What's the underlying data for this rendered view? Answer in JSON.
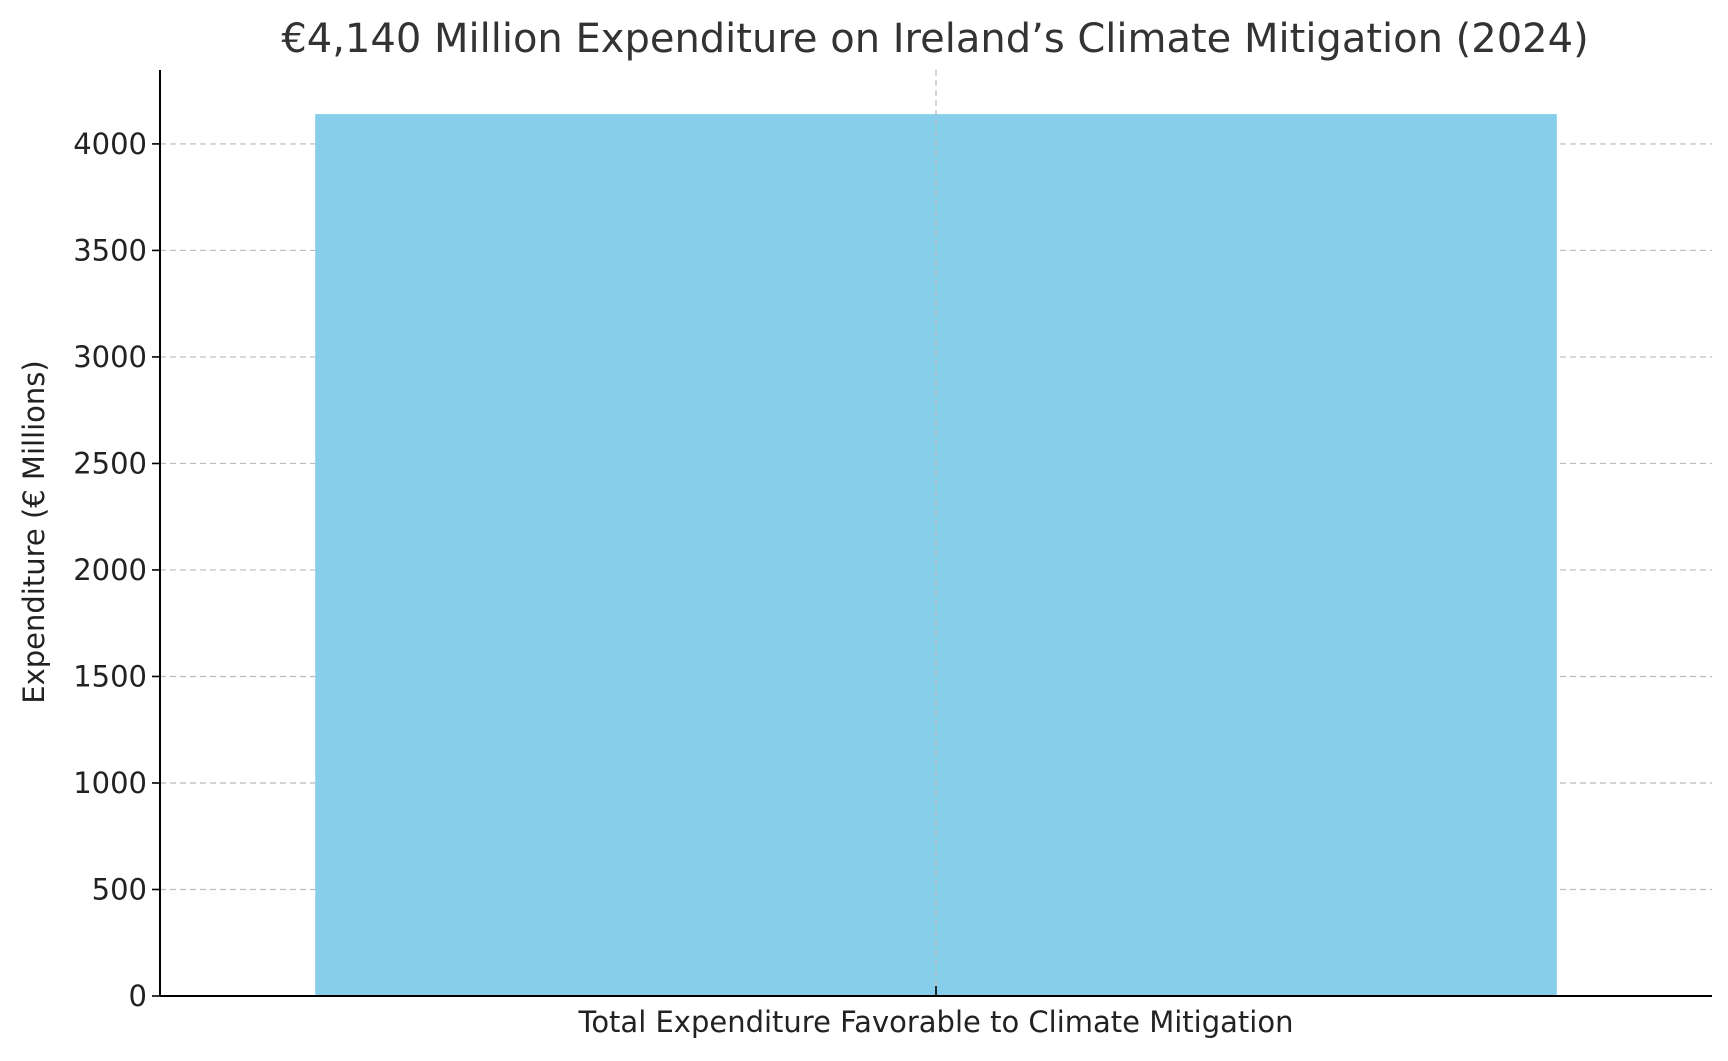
{
  "chart_data": {
    "type": "bar",
    "title": "€4,140 Million Expenditure on Ireland’s Climate Mitigation (2024)",
    "xlabel": "",
    "ylabel": "Expenditure (€ Millions)",
    "categories": [
      "Total Expenditure Favorable to Climate Mitigation"
    ],
    "values": [
      4140
    ],
    "ylim": [
      0,
      4347
    ],
    "yticks": [
      0,
      500,
      1000,
      1500,
      2000,
      2500,
      3000,
      3500,
      4000
    ],
    "grid": true,
    "legend": "none",
    "bar_color": "#87CEEB",
    "grid_color": "#bbbbbb",
    "axis_color": "#000000",
    "text_color": "#333333"
  }
}
